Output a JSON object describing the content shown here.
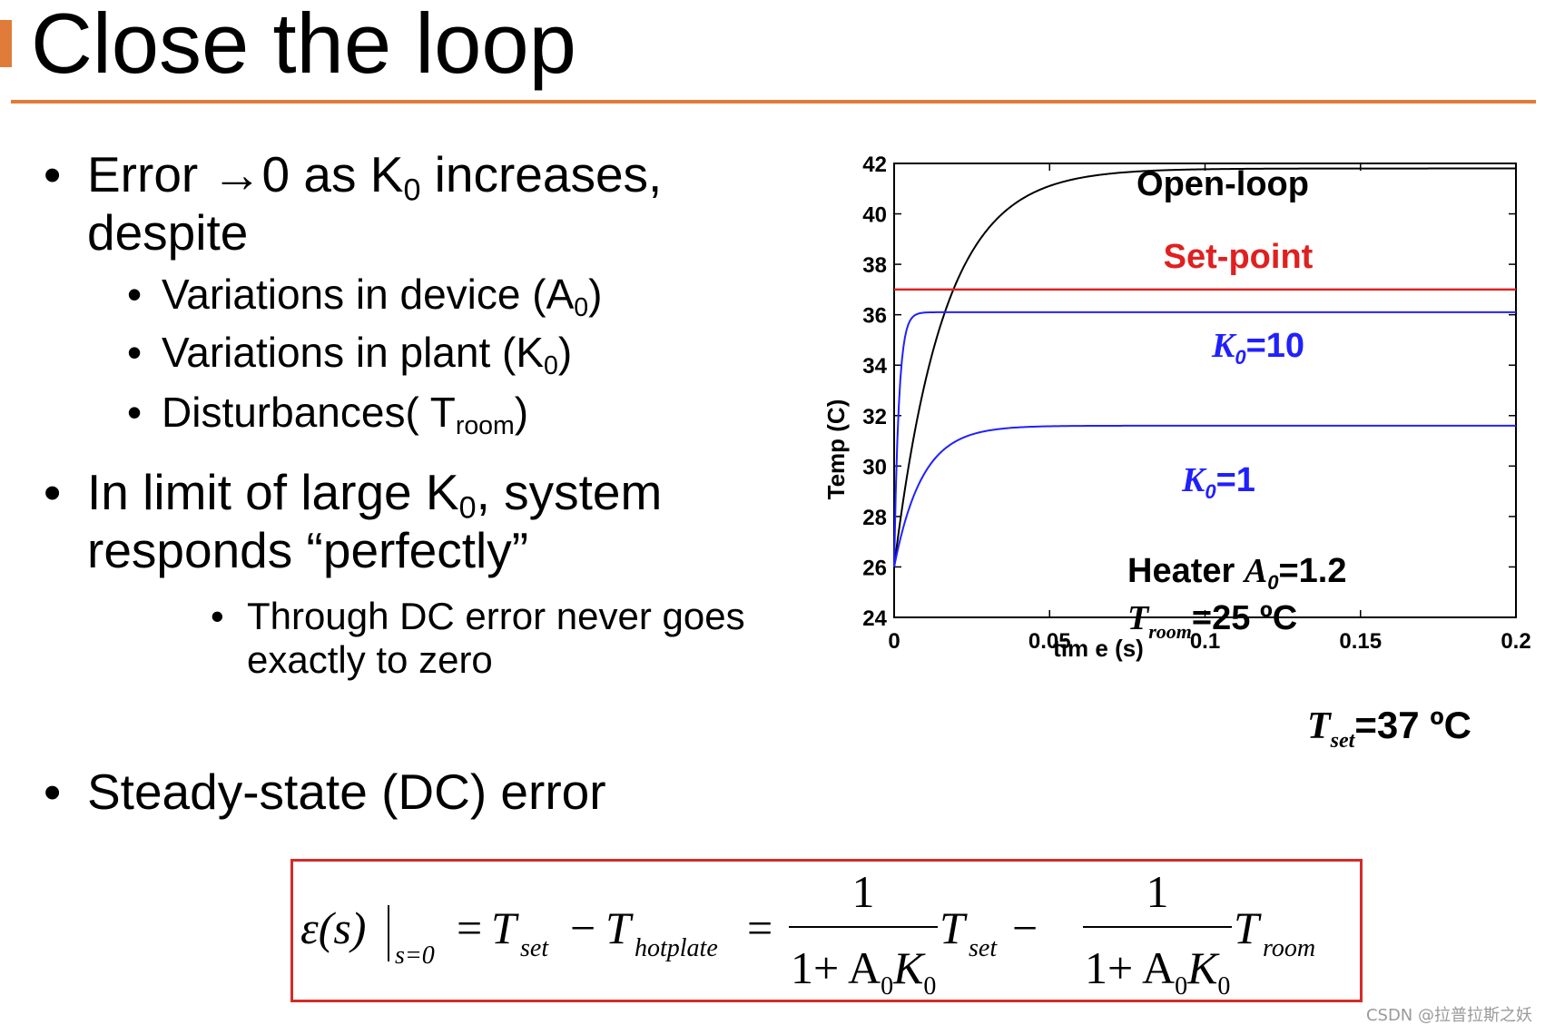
{
  "slide": {
    "title": "Close the loop",
    "accent_color": "#e07b39"
  },
  "bullets": {
    "b1_line1_pre": "Error ",
    "b1_arrow": "→",
    "b1_line1_mid": "0 as K",
    "b1_sub": "0",
    "b1_line1_post": " increases,",
    "b1_line2": "despite",
    "sub1_pre": "Variations in device (A",
    "sub1_sub": "0",
    "sub1_post": ")",
    "sub2_pre": "Variations in plant (K",
    "sub2_sub": "0",
    "sub2_post": ")",
    "sub3_pre": "Disturbances( T",
    "sub3_sub": "room",
    "sub3_post": ")",
    "b2_line1_pre": "In limit of large K",
    "b2_sub": "0",
    "b2_line1_post": ", system",
    "b2_line2": "responds “perfectly”",
    "b2_sub_line1": "Through DC error never goes",
    "b2_sub_line2": "exactly to zero",
    "b3": "Steady-state (DC) error",
    "bullet_char": "•"
  },
  "chart_data": {
    "type": "line",
    "xlabel": "tim e (s)",
    "ylabel": "Temp (C)",
    "xlim": [
      0,
      0.2
    ],
    "ylim": [
      24,
      42
    ],
    "x_ticks": [
      "0",
      "0.05",
      "0.1",
      "0.15",
      "0.2"
    ],
    "y_ticks": [
      "24",
      "26",
      "28",
      "30",
      "32",
      "34",
      "36",
      "38",
      "40",
      "42"
    ],
    "series": [
      {
        "label": "Open-loop",
        "color": "#000000",
        "initial": 26.0,
        "final": 41.8,
        "tau": 0.016
      },
      {
        "label": "Set-point",
        "color": "#e02020",
        "value": 37.0
      },
      {
        "label": "K0=10",
        "color": "#2020ff",
        "initial": 26.0,
        "final": 36.1,
        "tau": 0.0015
      },
      {
        "label": "K0=1",
        "color": "#2020ff",
        "initial": 26.0,
        "final": 31.6,
        "tau": 0.009
      }
    ],
    "annotations": {
      "open_loop": "Open-loop",
      "set_point": "Set-point",
      "k10_sym": "K",
      "k10_sub": "0",
      "k10_val": "=10",
      "k1_sym": "K",
      "k1_sub": "0",
      "k1_val": "=1",
      "heater_text": "Heater ",
      "heater_sym": "A",
      "heater_sub": "0",
      "heater_val": "=1.2",
      "troom_sym": "T",
      "troom_sub": "room",
      "troom_val": "=25 ºC",
      "tset_sym": "T",
      "tset_sub": "set",
      "tset_val": "=37 ºC"
    }
  },
  "formula": {
    "eps": "ε(s)",
    "eval_sub": "s=0",
    "eq": "=",
    "t": "T",
    "set_sub": "set",
    "minus": "−",
    "hotplate_sub": "hotplate",
    "num": "1",
    "den_pre": "1+ A",
    "den_a_sub": "0",
    "den_k": "K",
    "den_k_sub": "0",
    "room_sub": "room",
    "border_color": "#d62a2a"
  },
  "watermark": "CSDN @拉普拉斯之妖"
}
